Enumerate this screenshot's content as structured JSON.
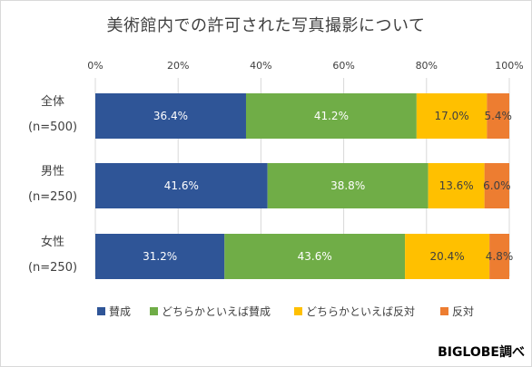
{
  "chart_data": {
    "type": "bar",
    "orientation": "horizontal",
    "stacked": "percent",
    "title": "美術館内での許可された写真撮影について",
    "categories": [
      {
        "label": "全体",
        "sublabel": "(n=500)"
      },
      {
        "label": "男性",
        "sublabel": "(n=250)"
      },
      {
        "label": "女性",
        "sublabel": "(n=250)"
      }
    ],
    "series": [
      {
        "name": "賛成",
        "color": "#2f5597",
        "values": [
          36.4,
          41.6,
          31.2
        ],
        "labels": [
          "36.4%",
          "41.6%",
          "31.2%"
        ]
      },
      {
        "name": "どちらかといえば賛成",
        "color": "#70ad47",
        "values": [
          41.2,
          38.8,
          43.6
        ],
        "labels": [
          "41.2%",
          "38.8%",
          "43.6%"
        ]
      },
      {
        "name": "どちらかといえば反対",
        "color": "#ffc000",
        "values": [
          17.0,
          13.6,
          20.4
        ],
        "labels": [
          "17.0%",
          "13.6%",
          "20.4%"
        ]
      },
      {
        "name": "反対",
        "color": "#ed7d31",
        "values": [
          5.4,
          6.0,
          4.8
        ],
        "labels": [
          "5.4%",
          "6.0%",
          "4.8%"
        ]
      }
    ],
    "xlim": [
      0,
      100
    ],
    "xticks": [
      "0%",
      "20%",
      "40%",
      "60%",
      "80%",
      "100%"
    ],
    "grid": true,
    "legend_position": "bottom"
  },
  "credit": "BIGLOBE調べ"
}
